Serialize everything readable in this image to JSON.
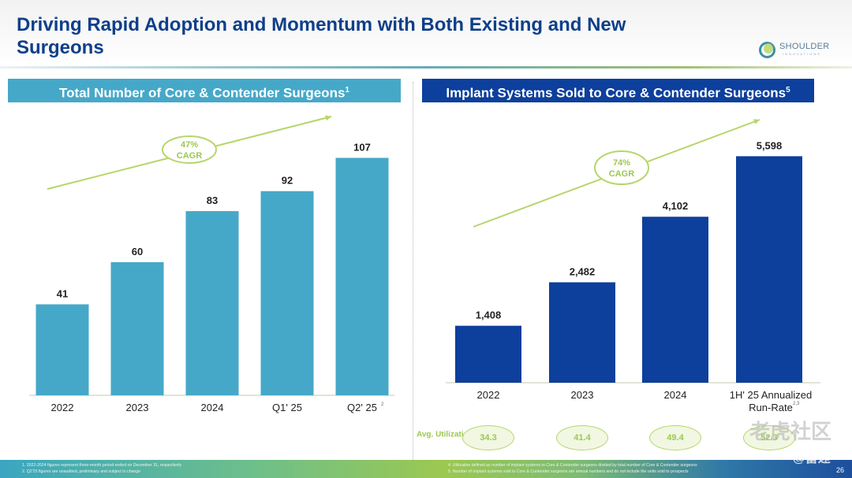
{
  "header": {
    "title": "Driving Rapid Adoption and Momentum with Both Existing and New Surgeons",
    "logo_text": "SHOULDER",
    "logo_subtext": "INNOVATIONS"
  },
  "chart_data": [
    {
      "type": "bar",
      "title": "Total Number of Core & Contender Surgeons",
      "title_footnote": "1",
      "categories": [
        "2022",
        "2023",
        "2024",
        "Q1' 25",
        "Q2' 25"
      ],
      "category_footnotes": [
        "",
        "",
        "",
        "",
        "2"
      ],
      "values": [
        41,
        60,
        83,
        92,
        107
      ],
      "data_labels": [
        "41",
        "60",
        "83",
        "92",
        "107"
      ],
      "color": "#46a8c8",
      "annotation": {
        "line1": "47%",
        "line2": "CAGR"
      },
      "xlabel": "",
      "ylabel": "",
      "ylim": [
        0,
        110
      ],
      "grid": false
    },
    {
      "type": "bar",
      "title": "Implant Systems Sold to Core & Contender Surgeons",
      "title_footnote": "5",
      "categories": [
        "2022",
        "2023",
        "2024",
        "1H' 25 Annualized Run-Rate"
      ],
      "category_footnotes": [
        "",
        "",
        "",
        "2,3"
      ],
      "values": [
        1408,
        2482,
        4102,
        5598
      ],
      "data_labels": [
        "1,408",
        "2,482",
        "4,102",
        "5,598"
      ],
      "color": "#0d3f9c",
      "annotation": {
        "line1": "74%",
        "line2": "CAGR"
      },
      "xlabel": "",
      "ylabel": "",
      "ylim": [
        0,
        5800
      ],
      "grid": false,
      "avg_utilization": {
        "label": "Avg. Utilization",
        "label_footnote": "4",
        "values": [
          "34.3",
          "41.4",
          "49.4",
          "52.3"
        ]
      }
    }
  ],
  "footer": {
    "left_notes": [
      "1. 2022-2024 figures represent three-month period ended on December 31, respectively",
      "2. Q2'25 figures are unaudited, preliminary and subject to change"
    ],
    "right_notes": [
      "4. Utilization defined as number of implant systems to Core & Contender surgeons divided by total number of Core & Contender surgeons",
      "5. Number of implant systems sold to Core & Contender surgeons are annual numbers and do not include the units sold to prospects"
    ],
    "page_number": "26"
  },
  "watermark": {
    "line1": "老虎社区",
    "line2": "@雷递"
  }
}
